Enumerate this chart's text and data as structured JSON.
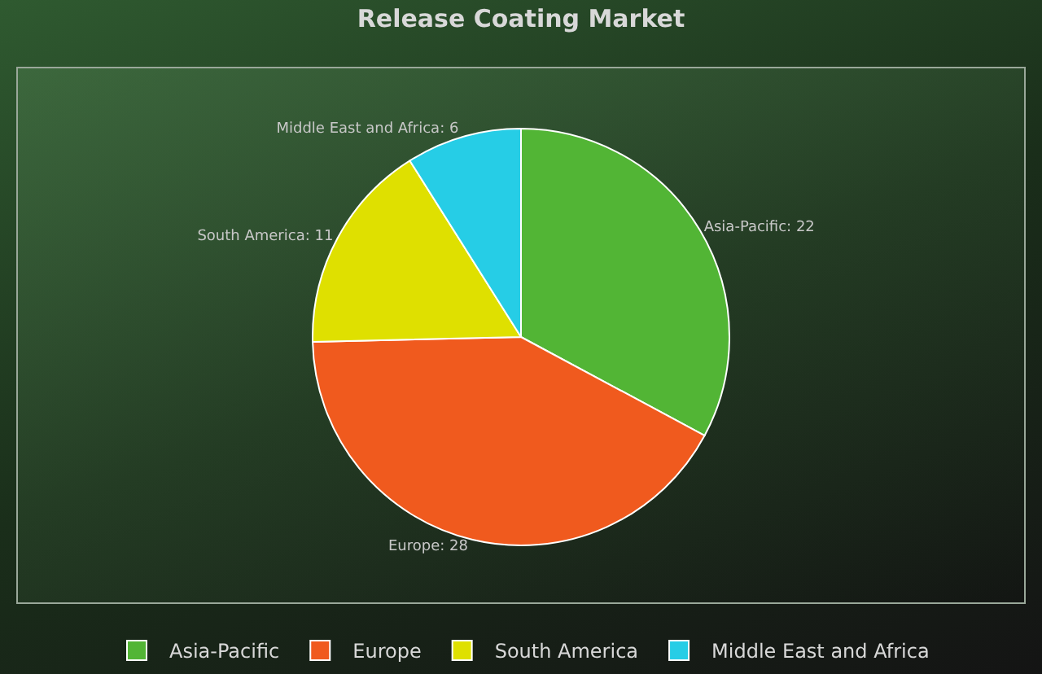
{
  "chart_data": {
    "type": "pie",
    "title": "Release Coating Market",
    "categories": [
      "Asia-Pacific",
      "Europe",
      "South America",
      "Middle East and Africa"
    ],
    "values": [
      22,
      28,
      11,
      6
    ],
    "colors": [
      "#52b535",
      "#f05a1e",
      "#dfe000",
      "#26cde6"
    ],
    "value_labels": [
      "Asia-Pacific: 22",
      "Europe: 28",
      "South America: 11",
      "Middle East and Africa: 6"
    ],
    "legend": "bottom"
  }
}
